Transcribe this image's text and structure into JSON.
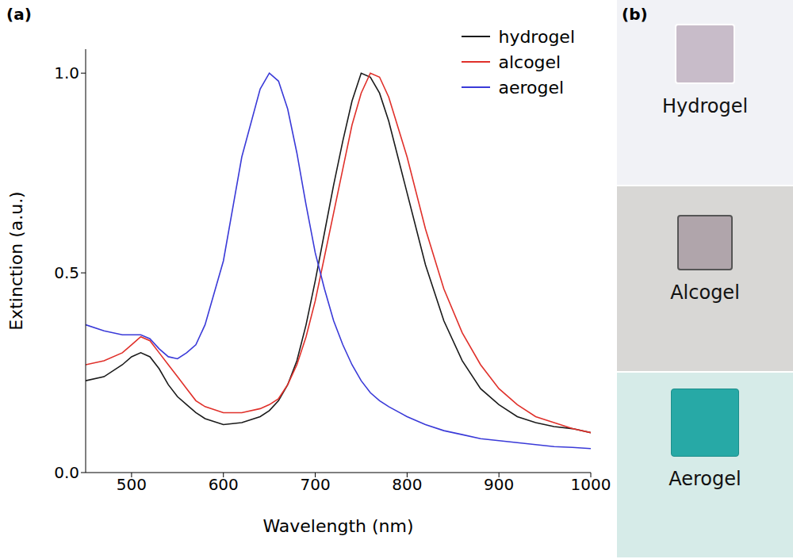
{
  "chart_data": {
    "type": "line",
    "x_label": "Wavelength (nm)",
    "y_label": "Extinction (a.u.)",
    "xlim": [
      450,
      1000
    ],
    "xticks": [
      500,
      600,
      700,
      800,
      900,
      1000
    ],
    "ylim": [
      0,
      1.06
    ],
    "yticks": [
      {
        "value": 0,
        "label": "0.0"
      },
      {
        "value": 0.5,
        "label": "0.5"
      },
      {
        "value": 1,
        "label": "1.0"
      }
    ],
    "grid": false,
    "legend": "top-right",
    "x": [
      450,
      470,
      490,
      500,
      510,
      520,
      530,
      540,
      550,
      560,
      570,
      580,
      600,
      620,
      640,
      650,
      660,
      670,
      680,
      690,
      700,
      710,
      720,
      730,
      740,
      750,
      760,
      770,
      780,
      800,
      820,
      840,
      860,
      880,
      900,
      920,
      940,
      960,
      980,
      1000
    ],
    "series": [
      {
        "name": "hydrogel",
        "color": "#1a1a1a",
        "values": [
          0.23,
          0.24,
          0.27,
          0.29,
          0.3,
          0.29,
          0.26,
          0.22,
          0.19,
          0.17,
          0.15,
          0.135,
          0.12,
          0.125,
          0.14,
          0.155,
          0.18,
          0.22,
          0.28,
          0.37,
          0.48,
          0.6,
          0.72,
          0.83,
          0.93,
          1.0,
          0.99,
          0.95,
          0.88,
          0.7,
          0.52,
          0.38,
          0.28,
          0.21,
          0.17,
          0.14,
          0.125,
          0.115,
          0.11,
          0.1
        ]
      },
      {
        "name": "alcogel",
        "color": "#e0302a",
        "values": [
          0.27,
          0.28,
          0.3,
          0.32,
          0.34,
          0.33,
          0.3,
          0.27,
          0.24,
          0.21,
          0.18,
          0.165,
          0.15,
          0.15,
          0.16,
          0.17,
          0.185,
          0.22,
          0.27,
          0.34,
          0.43,
          0.54,
          0.65,
          0.76,
          0.87,
          0.95,
          1.0,
          0.99,
          0.94,
          0.79,
          0.61,
          0.46,
          0.35,
          0.27,
          0.21,
          0.17,
          0.14,
          0.125,
          0.11,
          0.1
        ]
      },
      {
        "name": "aerogel",
        "color": "#3a3ad8",
        "values": [
          0.37,
          0.355,
          0.345,
          0.345,
          0.345,
          0.335,
          0.31,
          0.29,
          0.285,
          0.3,
          0.32,
          0.37,
          0.53,
          0.79,
          0.96,
          1.0,
          0.98,
          0.91,
          0.8,
          0.67,
          0.55,
          0.46,
          0.38,
          0.32,
          0.27,
          0.23,
          0.2,
          0.18,
          0.165,
          0.14,
          0.12,
          0.105,
          0.095,
          0.085,
          0.08,
          0.075,
          0.07,
          0.065,
          0.063,
          0.06
        ]
      }
    ]
  },
  "panel_labels": [
    "(a)",
    "(b)"
  ],
  "photo_labels": [
    "Hydrogel",
    "Alcogel",
    "Aerogel"
  ]
}
